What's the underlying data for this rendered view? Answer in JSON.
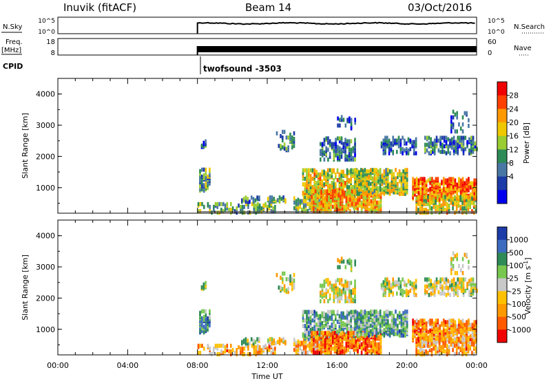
{
  "header": {
    "station": "Inuvik (fitACF)",
    "beam": "Beam 14",
    "date": "03/Oct/2016"
  },
  "top_panels": {
    "nsky_label": "N.Sky",
    "nsky_ticks": [
      "10^5",
      "10^0"
    ],
    "nsearch_label": "N.Search",
    "nsearch_ticks": [
      "10^5",
      "10^0"
    ],
    "freq_label": "Freq.",
    "freq_unit": "[MHz]",
    "freq_ticks": [
      "18",
      "8"
    ],
    "nave_label": "Nave",
    "nave_ticks": [
      "60",
      "0"
    ],
    "cpid_label": "CPID",
    "cpid_value": "twofsound -3503"
  },
  "chart_data": [
    {
      "type": "heatmap",
      "name": "power-panel",
      "ylabel": "Slant Range [km]",
      "y_ticks": [
        "4000",
        "3000",
        "2000",
        "1000"
      ],
      "ylim": [
        180,
        4500
      ],
      "colorbar_label": "Power [dB]",
      "colorbar_ticks": [
        "28",
        "24",
        "20",
        "16",
        "12",
        "8",
        "4"
      ],
      "colorbar_colors": [
        "#f00000",
        "#ff4000",
        "#ff9900",
        "#f0c800",
        "#9acd32",
        "#2e8b57",
        "#4a78a6",
        "#1c3aa8",
        "#0000ee"
      ]
    },
    {
      "type": "heatmap",
      "name": "velocity-panel",
      "ylabel": "Slant Range [km]",
      "y_ticks": [
        "4000",
        "3000",
        "2000",
        "1000"
      ],
      "ylim": [
        180,
        4500
      ],
      "xlabel": "Time UT",
      "x_ticks": [
        "00:00",
        "04:00",
        "08:00",
        "12:00",
        "16:00",
        "20:00",
        "00:00"
      ],
      "colorbar_label": "Velocity [m s",
      "colorbar_label_sup": "-1",
      "colorbar_label_end": "]",
      "colorbar_ticks": [
        "1000",
        "500",
        "100",
        "25",
        "-25",
        "-100",
        "-500",
        "-1000"
      ],
      "colorbar_colors": [
        "#1c3aa8",
        "#3c6cc0",
        "#2e8b57",
        "#78c850",
        "#c8c8c8",
        "#ffc000",
        "#ff9900",
        "#ff5a00",
        "#f00000"
      ]
    }
  ]
}
